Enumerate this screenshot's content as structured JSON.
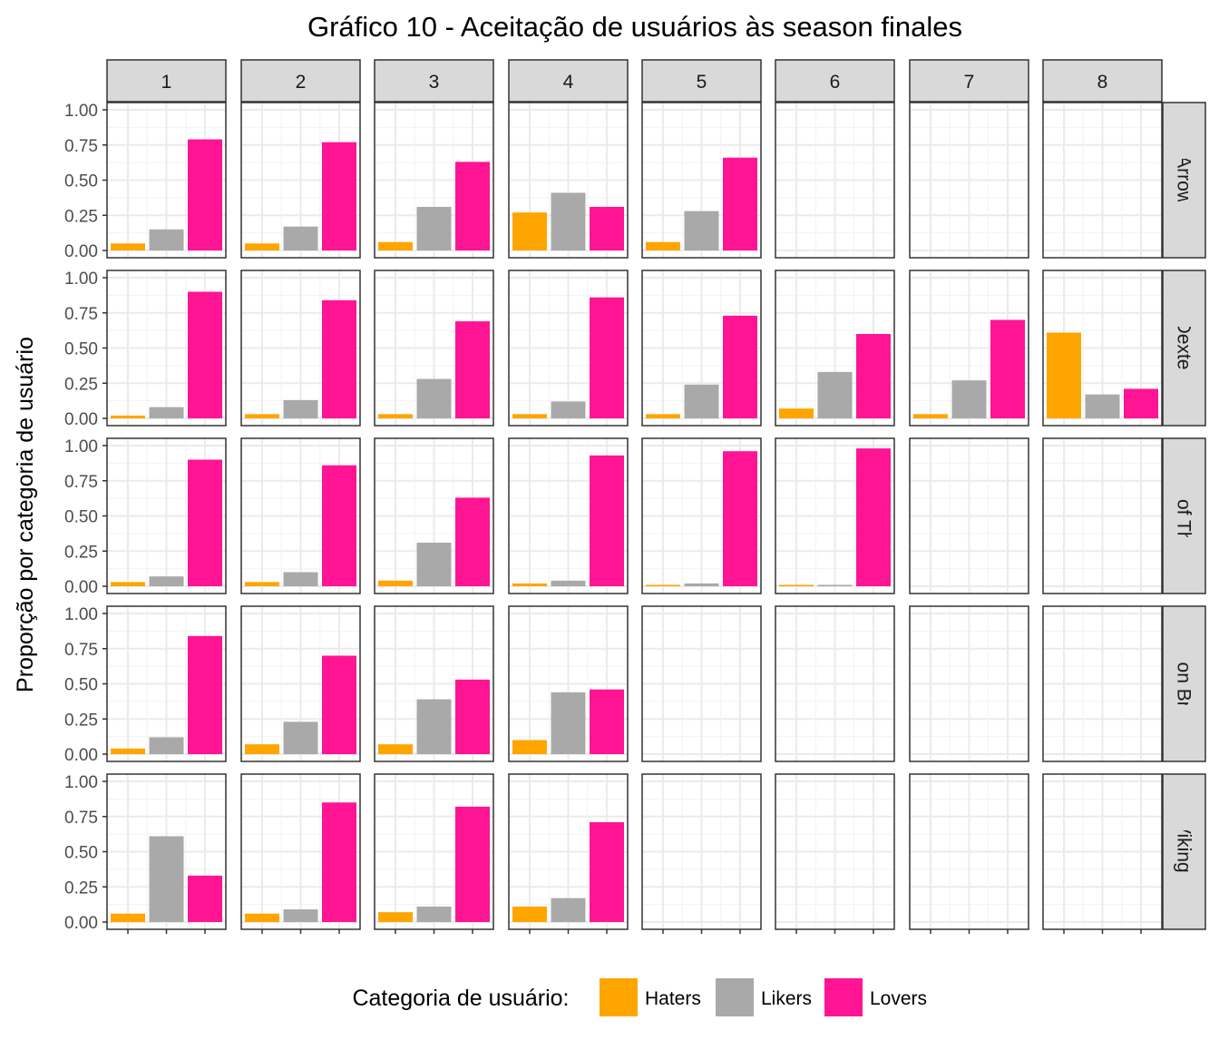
{
  "chart_data": {
    "type": "bar",
    "title": "Gráfico 10 - Aceitação de usuários às season finales",
    "xlabel": "",
    "ylabel": "Proporção por categoria de usuário",
    "ylim": [
      0,
      1
    ],
    "yticks": [
      "0.00",
      "0.25",
      "0.50",
      "0.75",
      "1.00"
    ],
    "grid": true,
    "legend": {
      "title": "Categoria de usuário:",
      "placement": "bottom",
      "entries": [
        {
          "name": "Haters",
          "color": "#FFA500"
        },
        {
          "name": "Likers",
          "color": "#A9A9A9"
        },
        {
          "name": "Lovers",
          "color": "#FF1493"
        }
      ]
    },
    "categories": [
      "Haters",
      "Likers",
      "Lovers"
    ],
    "facet_columns": [
      "1",
      "2",
      "3",
      "4",
      "5",
      "6",
      "7",
      "8"
    ],
    "facet_rows": [
      "Arrow",
      "Dexter",
      "Game of Thrones",
      "Prison Break",
      "Vikings"
    ],
    "panels": {
      "Arrow": [
        [
          0.05,
          0.15,
          0.79
        ],
        [
          0.05,
          0.17,
          0.77
        ],
        [
          0.06,
          0.31,
          0.63
        ],
        [
          0.27,
          0.41,
          0.31
        ],
        [
          0.06,
          0.28,
          0.66
        ],
        null,
        null,
        null
      ],
      "Dexter": [
        [
          0.02,
          0.08,
          0.9
        ],
        [
          0.03,
          0.13,
          0.84
        ],
        [
          0.03,
          0.28,
          0.69
        ],
        [
          0.03,
          0.12,
          0.86
        ],
        [
          0.03,
          0.24,
          0.73
        ],
        [
          0.07,
          0.33,
          0.6
        ],
        [
          0.03,
          0.27,
          0.7
        ],
        [
          0.61,
          0.17,
          0.21
        ]
      ],
      "Game of Thrones": [
        [
          0.03,
          0.07,
          0.9
        ],
        [
          0.03,
          0.1,
          0.86
        ],
        [
          0.04,
          0.31,
          0.63
        ],
        [
          0.02,
          0.04,
          0.93
        ],
        [
          0.01,
          0.02,
          0.96
        ],
        [
          0.01,
          0.01,
          0.98
        ],
        null,
        null
      ],
      "Prison Break": [
        [
          0.04,
          0.12,
          0.84
        ],
        [
          0.07,
          0.23,
          0.7
        ],
        [
          0.07,
          0.39,
          0.53
        ],
        [
          0.1,
          0.44,
          0.46
        ],
        null,
        null,
        null,
        null
      ],
      "Vikings": [
        [
          0.06,
          0.61,
          0.33
        ],
        [
          0.06,
          0.09,
          0.85
        ],
        [
          0.07,
          0.11,
          0.82
        ],
        [
          0.11,
          0.17,
          0.71
        ],
        null,
        null,
        null,
        null
      ]
    }
  }
}
